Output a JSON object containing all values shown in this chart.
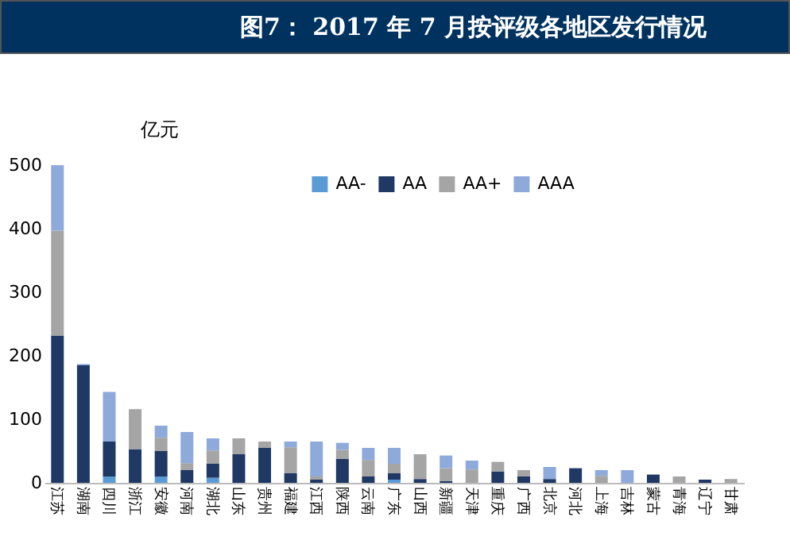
{
  "chart_data": {
    "type": "bar",
    "title": "图7： 2017 年 7 月按评级各地区发行情况",
    "ylabel": "亿元",
    "categories": [
      "江苏",
      "湖南",
      "四川",
      "浙江",
      "安徽",
      "河南",
      "湖北",
      "山东",
      "贵州",
      "福建",
      "江西",
      "陕西",
      "云南",
      "广东",
      "山西",
      "新疆",
      "天津",
      "重庆",
      "广西",
      "北京",
      "河北",
      "上海",
      "吉林",
      "蒙古",
      "青海",
      "辽宁",
      "甘肃"
    ],
    "stacked": true,
    "series": [
      {
        "name": "AA-",
        "color": "#5b9bd5",
        "values": [
          0,
          0,
          10,
          0,
          10,
          0,
          8,
          0,
          0,
          0,
          0,
          0,
          0,
          5,
          0,
          0,
          0,
          0,
          0,
          0,
          0,
          0,
          0,
          0,
          0,
          0,
          0
        ]
      },
      {
        "name": "AA",
        "color": "#1f3864",
        "values": [
          232,
          185,
          55,
          53,
          40,
          20,
          22,
          45,
          55,
          15,
          5,
          38,
          10,
          10,
          6,
          3,
          0,
          18,
          10,
          6,
          23,
          0,
          0,
          13,
          0,
          5,
          0
        ]
      },
      {
        "name": "AA+",
        "color": "#a5a5a5",
        "values": [
          165,
          0,
          0,
          63,
          21,
          11,
          21,
          25,
          10,
          41,
          5,
          14,
          26,
          15,
          39,
          20,
          21,
          15,
          10,
          0,
          0,
          11,
          0,
          0,
          10,
          0,
          6
        ]
      },
      {
        "name": "AAA",
        "color": "#8eaadb",
        "values": [
          103,
          2,
          78,
          0,
          19,
          49,
          19,
          0,
          0,
          9,
          55,
          11,
          19,
          25,
          0,
          20,
          14,
          0,
          0,
          19,
          0,
          9,
          20,
          0,
          0,
          0,
          0
        ]
      }
    ],
    "ylim": [
      0,
      500
    ],
    "yticks": [
      0,
      100,
      200,
      300,
      400,
      500
    ],
    "grid": false,
    "legend": "top"
  }
}
